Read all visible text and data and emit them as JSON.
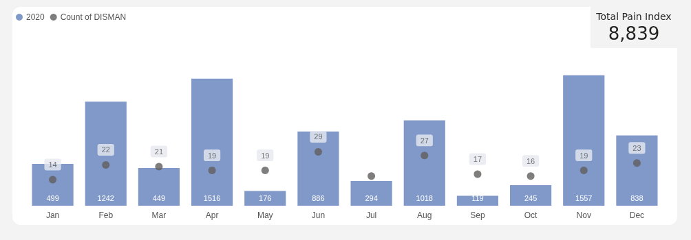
{
  "chart_data": [
    {
      "type": "bar",
      "categories": [
        "Jan",
        "Feb",
        "Mar",
        "Apr",
        "May",
        "Jun",
        "Jul",
        "Aug",
        "Sep",
        "Oct",
        "Nov",
        "Dec"
      ],
      "legend": "top left",
      "series": [
        {
          "name": "2020",
          "type": "bar",
          "color": "#8099c9",
          "values": [
            499,
            1242,
            449,
            1516,
            176,
            886,
            294,
            1018,
            119,
            245,
            1557,
            838
          ],
          "data_labels": true
        },
        {
          "name": "Count of DISMAN",
          "type": "scatter",
          "axis": "y2",
          "marker": "circle",
          "color": "#605e5c",
          "values": [
            14,
            22,
            21,
            19,
            19,
            29,
            16,
            27,
            17,
            16,
            19,
            23
          ],
          "value_labels": [
            "14",
            "22",
            "21",
            "19",
            "19",
            "29",
            null,
            "27",
            "17",
            "16",
            "19",
            "23"
          ]
        }
      ]
    },
    {
      "type": "other",
      "title": "Total Pain Index",
      "annotations": [
        "8,839"
      ]
    }
  ]
}
